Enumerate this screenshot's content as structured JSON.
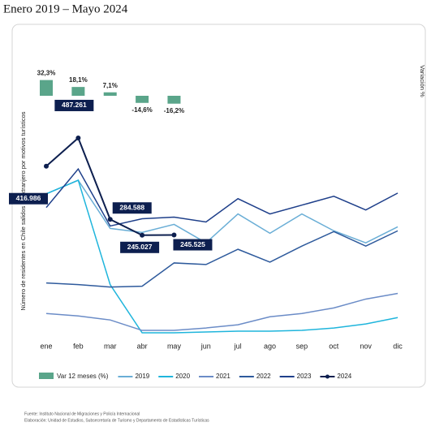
{
  "chart_data": {
    "type": "line",
    "title": "Enero 2019 – Mayo 2024",
    "y_label": "Número de residentes en Chile salidos al extranjero por motivos turísticos",
    "y2_label": "Variación %",
    "categories": [
      "ene",
      "feb",
      "mar",
      "abr",
      "may",
      "jun",
      "jul",
      "ago",
      "sep",
      "oct",
      "nov",
      "dic"
    ],
    "ylim": [
      0,
      750000
    ],
    "y2lim": [
      -60,
      60
    ],
    "bars": {
      "name": "Var 12 meses (%)",
      "color": "#5aa58a",
      "axis": "y2",
      "values": [
        32.3,
        18.1,
        7.1,
        -14.6,
        -16.2
      ],
      "value_labels": [
        "32,3%",
        "18,1%",
        "7,1%",
        "-14,6%",
        "-16,2%"
      ]
    },
    "series": [
      {
        "name": "2019",
        "color": "#6aaed6",
        "values": [
          348000,
          382000,
          262000,
          252000,
          272000,
          226000,
          298000,
          250000,
          298000,
          256000,
          226000,
          266000
        ]
      },
      {
        "name": "2020",
        "color": "#1fb5dc",
        "values": [
          348000,
          382000,
          122000,
          2000,
          2000,
          4000,
          6000,
          6000,
          8000,
          14000,
          24000,
          40000
        ]
      },
      {
        "name": "2021",
        "color": "#6b8cc7",
        "values": [
          50000,
          44000,
          34000,
          8000,
          8000,
          14000,
          22000,
          42000,
          50000,
          64000,
          86000,
          100000
        ]
      },
      {
        "name": "2022",
        "color": "#2e5a9c",
        "values": [
          126000,
          122000,
          116000,
          118000,
          176000,
          172000,
          210000,
          178000,
          218000,
          254000,
          218000,
          256000
        ]
      },
      {
        "name": "2023",
        "color": "#1e3f8a",
        "values": [
          314000,
          410000,
          268000,
          286000,
          290000,
          278000,
          336000,
          298000,
          320000,
          342000,
          308000,
          350000
        ]
      },
      {
        "name": "2024",
        "color": "#0d1f4f",
        "values": [
          416986,
          487261,
          284588,
          245027,
          245525,
          null,
          null,
          null,
          null,
          null,
          null,
          null
        ],
        "value_labels": [
          "416.986",
          "487.261",
          "284.588",
          "245.027",
          "245.525"
        ]
      }
    ],
    "footnotes": [
      "Fuente: Instituto Nacional de Migraciones y Policía Internacional",
      "Elaboración: Unidad de Estudios, Subsecretaría de Turismo y Departamento de Estadísticas Turísticas"
    ]
  }
}
